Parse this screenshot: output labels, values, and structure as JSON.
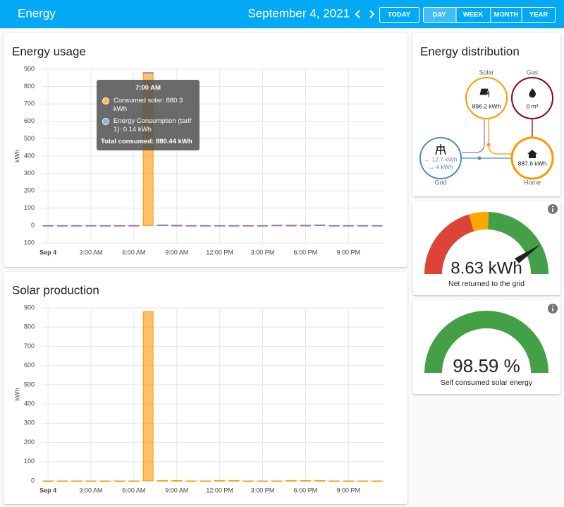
{
  "header": {
    "title": "Energy",
    "date": "September 4, 2021",
    "buttons": [
      "TODAY",
      "DAY",
      "WEEK",
      "MONTH",
      "YEAR"
    ]
  },
  "energy_usage": {
    "chart_data": {
      "type": "bar",
      "title": "Energy usage",
      "y_label": "kWh",
      "stacked": true,
      "grid": true,
      "x": [
        0,
        1,
        2,
        3,
        4,
        5,
        6,
        7,
        8,
        9,
        10,
        11,
        12,
        13,
        14,
        15,
        16,
        17,
        18,
        19,
        20,
        21,
        22,
        23
      ],
      "series": [
        {
          "color": "#ff9800",
          "values": [
            0,
            0,
            0,
            0,
            0,
            0,
            0,
            880.3,
            3,
            0,
            0,
            0,
            0,
            0,
            0,
            0,
            2,
            0,
            0,
            3,
            0,
            0,
            0,
            0
          ]
        },
        {
          "color": "#9575cd",
          "values": [
            0,
            0,
            0,
            0,
            0,
            0,
            0,
            0.14,
            0,
            2,
            0,
            0,
            0,
            0,
            0,
            0,
            0,
            2,
            2,
            0,
            0,
            0,
            0,
            0
          ]
        }
      ],
      "xlim": [
        -0.4,
        23.5
      ],
      "xticks": [
        {
          "value": 0,
          "label": "Sep 4"
        },
        {
          "value": 3,
          "label": "3:00 AM"
        },
        {
          "value": 6,
          "label": "6:00 AM"
        },
        {
          "value": 9,
          "label": "9:00 AM"
        },
        {
          "value": 12,
          "label": "12:00 PM"
        },
        {
          "value": 15,
          "label": "3:00 PM"
        },
        {
          "value": 18,
          "label": "6:00 PM"
        },
        {
          "value": 21,
          "label": "9:00 PM"
        }
      ],
      "ylim": [
        -100,
        900
      ],
      "yticks": [
        {
          "value": -100,
          "label": "100"
        },
        0,
        100,
        200,
        300,
        400,
        500,
        600,
        700,
        800,
        900
      ]
    },
    "tooltip": {
      "title": "7:00 AM",
      "items": [
        {
          "text": "Consumed solar: 880.3 kWh",
          "color": "#ffb74d"
        },
        {
          "text": "Energy Consumption (tarif 1): 0.14 kWh",
          "color": "#8cb4dc"
        }
      ],
      "total": "Total consumed: 880.44 kWh"
    }
  },
  "solar_production": {
    "chart_data": {
      "type": "bar",
      "title": "Solar production",
      "y_label": "kWh",
      "stacked": true,
      "grid": true,
      "x": [
        0,
        1,
        2,
        3,
        4,
        5,
        6,
        7,
        8,
        9,
        10,
        11,
        12,
        13,
        14,
        15,
        16,
        17,
        18,
        19,
        20,
        21,
        22,
        23
      ],
      "series": [
        {
          "color": "#ff9800",
          "values": [
            0,
            0,
            0,
            0,
            0,
            0,
            0,
            880,
            1.5,
            1.5,
            0,
            0,
            1.5,
            1.5,
            0,
            0,
            0,
            1.5,
            1.5,
            1.5,
            0,
            0,
            0,
            0
          ]
        }
      ],
      "xlim": [
        -0.4,
        23.5
      ],
      "xticks": [
        {
          "value": 0,
          "label": "Sep 4"
        },
        {
          "value": 3,
          "label": "3:00 AM"
        },
        {
          "value": 6,
          "label": "6:00 AM"
        },
        {
          "value": 9,
          "label": "9:00 AM"
        },
        {
          "value": 12,
          "label": "12:00 PM"
        },
        {
          "value": 15,
          "label": "3:00 PM"
        },
        {
          "value": 18,
          "label": "6:00 PM"
        },
        {
          "value": 21,
          "label": "9:00 PM"
        }
      ],
      "ylim": [
        0,
        900
      ],
      "yticks": [
        0,
        100,
        200,
        300,
        400,
        500,
        600,
        700,
        800,
        900
      ]
    }
  },
  "distribution": {
    "title": "Energy distribution",
    "solar": {
      "label": "Solar",
      "value": "896.2 kWh"
    },
    "gas": {
      "label": "Gas",
      "value": "0 m³"
    },
    "grid": {
      "label": "Grid",
      "from": "← 12.7 kWh",
      "to": "→ 4 kWh"
    },
    "home": {
      "label": "Home",
      "value": "887.6 kWh"
    }
  },
  "gauge_grid": {
    "value": "8.63 kWh",
    "label": "Net returned to the grid"
  },
  "gauge_solar": {
    "value": "98.59 %",
    "label": "Self consumed solar energy"
  }
}
